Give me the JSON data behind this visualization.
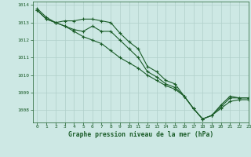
{
  "title": "Graphe pression niveau de la mer (hPa)",
  "background_color": "#cde8e4",
  "plot_bg_color": "#cde8e4",
  "grid_color": "#b0cfc9",
  "line_color": "#1a5c28",
  "xlim": [
    -0.5,
    23
  ],
  "ylim": [
    1007.3,
    1014.2
  ],
  "yticks": [
    1008,
    1009,
    1010,
    1011,
    1012,
    1013,
    1014
  ],
  "xticks": [
    0,
    1,
    2,
    3,
    4,
    5,
    6,
    7,
    8,
    9,
    10,
    11,
    12,
    13,
    14,
    15,
    16,
    17,
    18,
    19,
    20,
    21,
    22,
    23
  ],
  "series": [
    [
      1013.8,
      1013.3,
      1013.0,
      1013.1,
      1013.1,
      1013.2,
      1013.2,
      1013.1,
      1013.0,
      1012.4,
      1011.9,
      1011.5,
      1010.5,
      1010.2,
      1009.7,
      1009.5,
      1008.8,
      1008.1,
      1007.5,
      1007.7,
      1008.3,
      1008.8,
      1008.7,
      1008.7
    ],
    [
      1013.7,
      1013.2,
      1013.0,
      1012.8,
      1012.6,
      1012.5,
      1012.8,
      1012.5,
      1012.5,
      1012.0,
      1011.5,
      1011.0,
      1010.2,
      1009.9,
      1009.5,
      1009.3,
      1008.8,
      1008.1,
      1007.5,
      1007.7,
      1008.2,
      1008.7,
      1008.7,
      1008.7
    ],
    [
      1013.7,
      1013.2,
      1013.0,
      1012.8,
      1012.5,
      1012.2,
      1012.0,
      1011.8,
      1011.4,
      1011.0,
      1010.7,
      1010.4,
      1010.0,
      1009.7,
      1009.4,
      1009.2,
      1008.8,
      1008.1,
      1007.5,
      1007.7,
      1008.1,
      1008.5,
      1008.6,
      1008.6
    ]
  ],
  "label_fontsize": 5.5,
  "tick_fontsize": 4.5,
  "title_fontsize": 5.8
}
